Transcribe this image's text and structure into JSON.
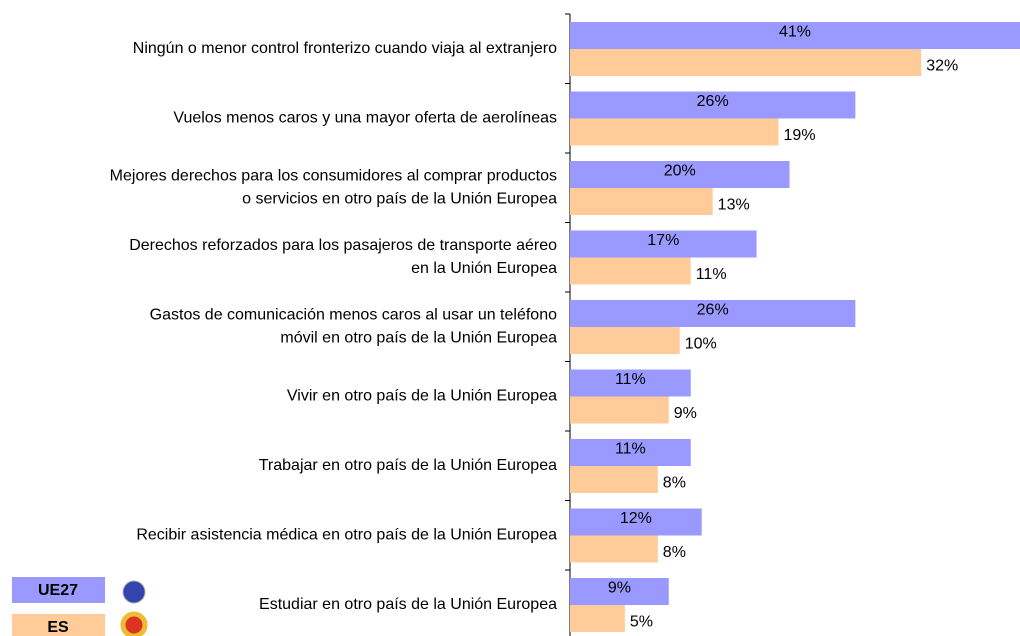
{
  "chart_data": {
    "type": "bar",
    "orientation": "horizontal",
    "categories": [
      [
        "Ningún o menor control fronterizo cuando viaja al extranjero"
      ],
      [
        "Vuelos menos caros y una mayor oferta de aerolíneas"
      ],
      [
        "Mejores derechos para los consumidores al comprar productos",
        "o servicios en otro país de la Unión Europea"
      ],
      [
        "Derechos reforzados para los pasajeros de transporte aéreo",
        "en la Unión Europea"
      ],
      [
        "Gastos de comunicación menos caros al usar un teléfono",
        "móvil en otro país de la Unión Europea"
      ],
      [
        "Vivir en otro país de la Unión Europea"
      ],
      [
        "Trabajar en otro país de la Unión Europea"
      ],
      [
        "Recibir asistencia médica en otro país de la Unión Europea"
      ],
      [
        "Estudiar en otro país de la Unión Europea"
      ]
    ],
    "series": [
      {
        "name": "UE27",
        "color": "#9999ff",
        "values": [
          41,
          26,
          20,
          17,
          26,
          11,
          11,
          12,
          9
        ],
        "value_labels": [
          "41%",
          "26%",
          "20%",
          "17%",
          "26%",
          "11%",
          "11%",
          "12%",
          "9%"
        ]
      },
      {
        "name": "ES",
        "color": "#ffcc99",
        "values": [
          32,
          19,
          13,
          11,
          10,
          9,
          8,
          8,
          5
        ],
        "value_labels": [
          "32%",
          "19%",
          "13%",
          "11%",
          "10%",
          "9%",
          "8%",
          "8%",
          "5%"
        ]
      }
    ]
  }
}
